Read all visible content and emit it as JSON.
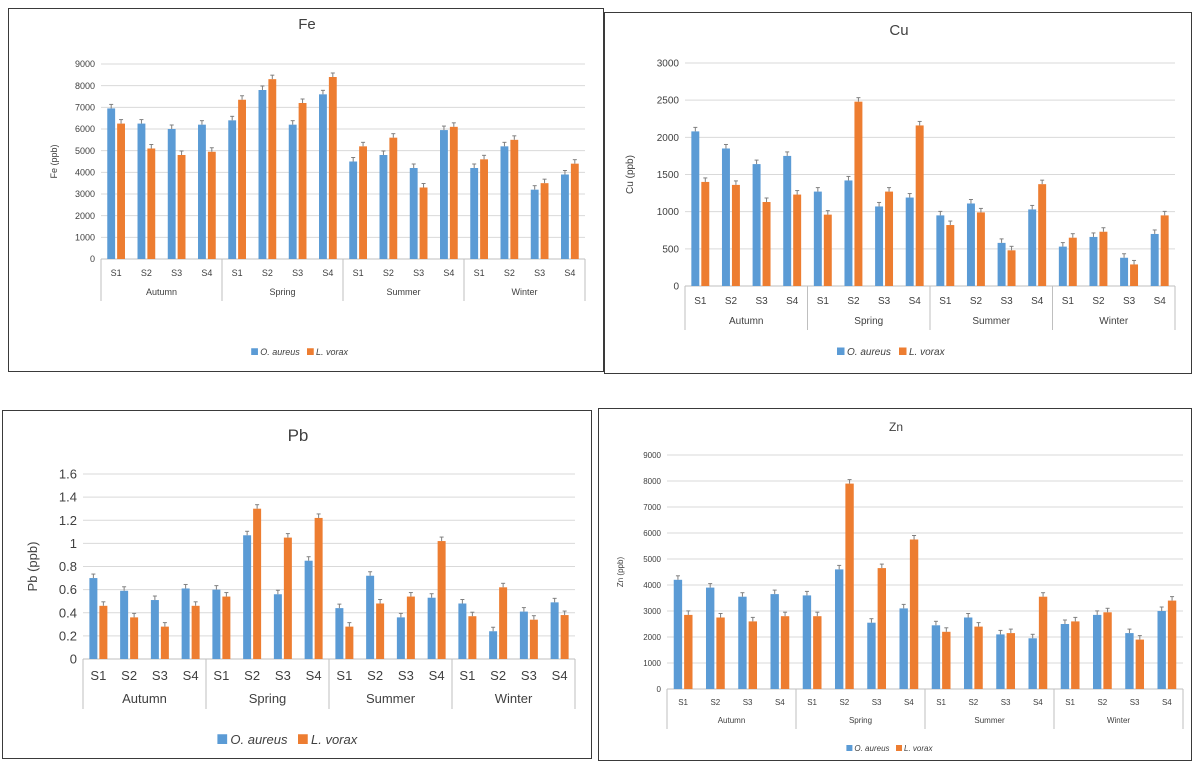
{
  "colors": {
    "o_aureus": "#5b9bd5",
    "l_vorax": "#ed7d31",
    "grid": "#d9d9d9",
    "axis": "#bfbfbf",
    "text": "#404040"
  },
  "chart_data": [
    {
      "type": "bar",
      "title": "Fe",
      "ylabel": "Fe (ppb)",
      "xlabel": "",
      "ylim": [
        0,
        9000
      ],
      "yticks": [
        0,
        1000,
        2000,
        3000,
        4000,
        5000,
        6000,
        7000,
        8000,
        9000
      ],
      "grid": true,
      "legend_position": "bottom",
      "groups": [
        "Autumn",
        "Spring",
        "Summer",
        "Winter"
      ],
      "categories": [
        "S1",
        "S2",
        "S3",
        "S4",
        "S1",
        "S2",
        "S3",
        "S4",
        "S1",
        "S2",
        "S3",
        "S4",
        "S1",
        "S2",
        "S3",
        "S4"
      ],
      "series": [
        {
          "name": "O. aureus",
          "values": [
            6950,
            6250,
            6000,
            6200,
            6400,
            7800,
            6200,
            7600,
            4500,
            4800,
            4200,
            5950,
            4200,
            5200,
            3200,
            3900
          ]
        },
        {
          "name": "L. vorax",
          "values": [
            6250,
            5100,
            4800,
            4950,
            7350,
            8300,
            7200,
            8400,
            5200,
            5600,
            3300,
            6100,
            4600,
            5500,
            3500,
            4400
          ]
        }
      ]
    },
    {
      "type": "bar",
      "title": "Cu",
      "ylabel": "Cu (ppb)",
      "xlabel": "",
      "ylim": [
        0,
        3000
      ],
      "yticks": [
        0,
        500,
        1000,
        1500,
        2000,
        2500,
        3000
      ],
      "grid": true,
      "legend_position": "bottom",
      "groups": [
        "Autumn",
        "Spring",
        "Summer",
        "Winter"
      ],
      "categories": [
        "S1",
        "S2",
        "S3",
        "S4",
        "S1",
        "S2",
        "S3",
        "S4",
        "S1",
        "S2",
        "S3",
        "S4",
        "S1",
        "S2",
        "S3",
        "S4"
      ],
      "series": [
        {
          "name": "O. aureus",
          "values": [
            2080,
            1850,
            1640,
            1750,
            1270,
            1420,
            1070,
            1190,
            950,
            1110,
            580,
            1030,
            530,
            660,
            380,
            700
          ]
        },
        {
          "name": "L. vorax",
          "values": [
            1400,
            1360,
            1130,
            1230,
            960,
            2480,
            1270,
            2160,
            820,
            990,
            480,
            1370,
            650,
            730,
            290,
            950
          ]
        }
      ]
    },
    {
      "type": "bar",
      "title": "Pb",
      "ylabel": "Pb (ppb)",
      "xlabel": "",
      "ylim": [
        0,
        1.6
      ],
      "yticks": [
        "0",
        "0.2",
        "0.4",
        "0.6",
        "0.8",
        "1",
        "1.2",
        "1.4",
        "1.6"
      ],
      "grid": true,
      "legend_position": "bottom",
      "groups": [
        "Autumn",
        "Spring",
        "Summer",
        "Winter"
      ],
      "categories": [
        "S1",
        "S2",
        "S3",
        "S4",
        "S1",
        "S2",
        "S3",
        "S4",
        "S1",
        "S2",
        "S3",
        "S4",
        "S1",
        "S2",
        "S3",
        "S4"
      ],
      "series": [
        {
          "name": "O. aureus",
          "values": [
            0.7,
            0.59,
            0.51,
            0.61,
            0.6,
            1.07,
            0.56,
            0.85,
            0.44,
            0.72,
            0.36,
            0.53,
            0.48,
            0.24,
            0.41,
            0.49
          ]
        },
        {
          "name": "L. vorax",
          "values": [
            0.46,
            0.36,
            0.28,
            0.46,
            0.54,
            1.3,
            1.05,
            1.22,
            0.28,
            0.48,
            0.54,
            1.02,
            0.37,
            0.62,
            0.34,
            0.38
          ]
        }
      ]
    },
    {
      "type": "bar",
      "title": "Zn",
      "ylabel": "Zn (ppb)",
      "xlabel": "",
      "ylim": [
        0,
        9000
      ],
      "yticks": [
        0,
        1000,
        2000,
        3000,
        4000,
        5000,
        6000,
        7000,
        8000,
        9000
      ],
      "grid": true,
      "legend_position": "bottom",
      "groups": [
        "Autumn",
        "Spring",
        "Summer",
        "Winter"
      ],
      "categories": [
        "S1",
        "S2",
        "S3",
        "S4",
        "S1",
        "S2",
        "S3",
        "S4",
        "S1",
        "S2",
        "S3",
        "S4",
        "S1",
        "S2",
        "S3",
        "S4"
      ],
      "series": [
        {
          "name": "O. aureus",
          "values": [
            4200,
            3900,
            3550,
            3650,
            3600,
            4600,
            2550,
            3100,
            2450,
            2750,
            2100,
            1950,
            2500,
            2850,
            2150,
            3000
          ]
        },
        {
          "name": "L. vorax",
          "values": [
            2850,
            2750,
            2600,
            2800,
            2800,
            7900,
            4650,
            5750,
            2200,
            2400,
            2150,
            3550,
            2600,
            2950,
            1900,
            3400
          ]
        }
      ]
    }
  ]
}
